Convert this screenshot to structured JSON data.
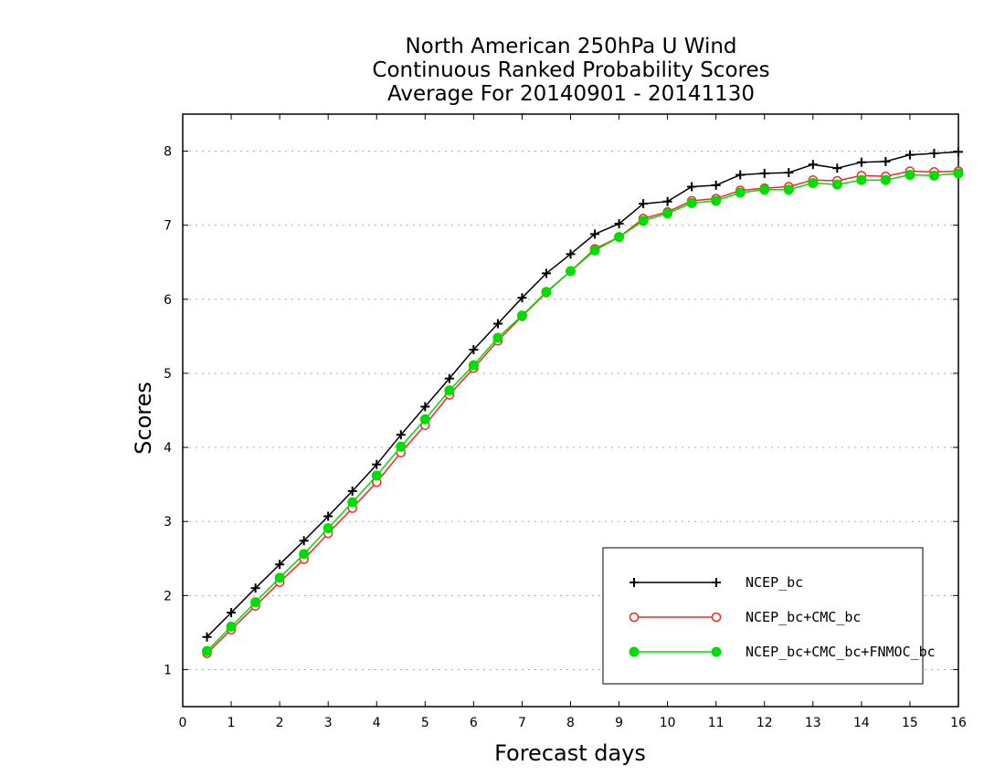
{
  "chart_data": {
    "type": "line",
    "title_lines": [
      "North American 250hPa U Wind",
      "Continuous Ranked Probability Scores",
      "Average For 20140901 - 20141130"
    ],
    "xlabel": "Forecast days",
    "ylabel": "Scores",
    "xlim": [
      0,
      16
    ],
    "ylim": [
      0.5,
      8.5
    ],
    "xticks": [
      0,
      1,
      2,
      3,
      4,
      5,
      6,
      7,
      8,
      9,
      10,
      11,
      12,
      13,
      14,
      15,
      16
    ],
    "yticks": [
      1,
      2,
      3,
      4,
      5,
      6,
      7,
      8
    ],
    "grid": "horizontal dotted",
    "legend_position": "bottom-right",
    "x": [
      0.5,
      1,
      1.5,
      2,
      2.5,
      3,
      3.5,
      4,
      4.5,
      5,
      5.5,
      6,
      6.5,
      7,
      7.5,
      8,
      8.5,
      9,
      9.5,
      10,
      10.5,
      11,
      11.5,
      12,
      12.5,
      13,
      13.5,
      14,
      14.5,
      15,
      15.5,
      16
    ],
    "series": [
      {
        "name": "NCEP_bc",
        "color": "#000000",
        "marker": "plus",
        "values": [
          1.44,
          1.77,
          2.1,
          2.42,
          2.74,
          3.07,
          3.41,
          3.77,
          4.17,
          4.55,
          4.93,
          5.32,
          5.67,
          6.02,
          6.35,
          6.61,
          6.88,
          7.02,
          7.29,
          7.32,
          7.52,
          7.54,
          7.68,
          7.7,
          7.71,
          7.82,
          7.77,
          7.85,
          7.86,
          7.95,
          7.97,
          7.99
        ]
      },
      {
        "name": "NCEP_bc+CMC_bc",
        "color": "#ff2222",
        "marker": "open-circle",
        "values": [
          1.22,
          1.54,
          1.86,
          2.18,
          2.49,
          2.84,
          3.18,
          3.53,
          3.93,
          4.3,
          4.71,
          5.07,
          5.44,
          5.77,
          6.09,
          6.38,
          6.68,
          6.84,
          7.09,
          7.18,
          7.33,
          7.36,
          7.47,
          7.5,
          7.52,
          7.61,
          7.6,
          7.67,
          7.66,
          7.73,
          7.72,
          7.73
        ]
      },
      {
        "name": "NCEP_bc+CMC_bc+FNMOC_bc",
        "color": "#00dd00",
        "marker": "filled-circle",
        "values": [
          1.25,
          1.58,
          1.91,
          2.24,
          2.56,
          2.91,
          3.26,
          3.62,
          4.01,
          4.38,
          4.77,
          5.11,
          5.48,
          5.78,
          6.1,
          6.38,
          6.66,
          6.84,
          7.06,
          7.16,
          7.3,
          7.33,
          7.44,
          7.48,
          7.48,
          7.57,
          7.55,
          7.61,
          7.61,
          7.68,
          7.67,
          7.7
        ]
      }
    ]
  }
}
